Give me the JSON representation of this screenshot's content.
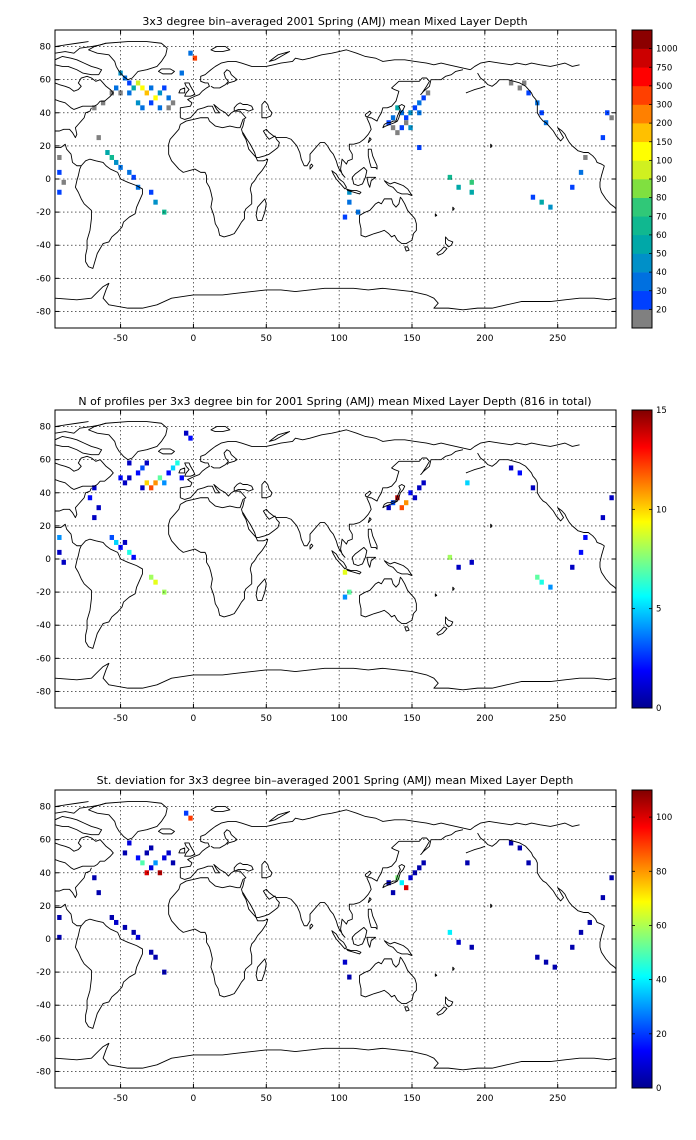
{
  "chart_data": [
    {
      "type": "heatmap",
      "title": "3x3 degree bin–averaged 2001 Spring (AMJ) mean Mixed Layer Depth",
      "xlim": [
        -95,
        290
      ],
      "ylim": [
        -90,
        90
      ],
      "xticks": [
        -50,
        0,
        50,
        100,
        150,
        200,
        250
      ],
      "yticks": [
        80,
        60,
        40,
        20,
        0,
        -20,
        -40,
        -60,
        -80
      ],
      "grid": true,
      "colorbar": {
        "kind": "categorical",
        "labels": [
          "20",
          "30",
          "40",
          "50",
          "60",
          "70",
          "80",
          "90",
          "100",
          "150",
          "200",
          "300",
          "500",
          "750",
          "1000"
        ],
        "colors": [
          "#808080",
          "#0040ff",
          "#0070e0",
          "#0090c8",
          "#00a8a8",
          "#10b890",
          "#30c878",
          "#80e040",
          "#d0f020",
          "#ffff00",
          "#ffc000",
          "#ff8000",
          "#ff4000",
          "#ff0000",
          "#cc0000",
          "#8b0000"
        ]
      },
      "cells": [
        {
          "lon": -50,
          "lat": 64,
          "v": 3
        },
        {
          "lon": -47,
          "lat": 61,
          "v": 2
        },
        {
          "lon": -44,
          "lat": 58,
          "v": 1
        },
        {
          "lon": -53,
          "lat": 55,
          "v": 2
        },
        {
          "lon": -56,
          "lat": 52,
          "v": 0
        },
        {
          "lon": -50,
          "lat": 52,
          "v": 0
        },
        {
          "lon": -44,
          "lat": 52,
          "v": 2
        },
        {
          "lon": -41,
          "lat": 55,
          "v": 4
        },
        {
          "lon": -38,
          "lat": 58,
          "v": 8
        },
        {
          "lon": -35,
          "lat": 55,
          "v": 9
        },
        {
          "lon": -32,
          "lat": 52,
          "v": 10
        },
        {
          "lon": -29,
          "lat": 55,
          "v": 2
        },
        {
          "lon": -26,
          "lat": 49,
          "v": 9
        },
        {
          "lon": -23,
          "lat": 52,
          "v": 3
        },
        {
          "lon": -20,
          "lat": 55,
          "v": 1
        },
        {
          "lon": -17,
          "lat": 49,
          "v": 2
        },
        {
          "lon": -14,
          "lat": 46,
          "v": 0
        },
        {
          "lon": -38,
          "lat": 46,
          "v": 3
        },
        {
          "lon": -35,
          "lat": 43,
          "v": 2
        },
        {
          "lon": -29,
          "lat": 46,
          "v": 1
        },
        {
          "lon": -23,
          "lat": 43,
          "v": 2
        },
        {
          "lon": -17,
          "lat": 43,
          "v": 0
        },
        {
          "lon": -8,
          "lat": 64,
          "v": 2
        },
        {
          "lon": -2,
          "lat": 76,
          "v": 2
        },
        {
          "lon": 1,
          "lat": 73,
          "v": 12
        },
        {
          "lon": -62,
          "lat": 46,
          "v": 0
        },
        {
          "lon": -68,
          "lat": 43,
          "v": 0
        },
        {
          "lon": -65,
          "lat": 25,
          "v": 0
        },
        {
          "lon": -59,
          "lat": 16,
          "v": 4
        },
        {
          "lon": -56,
          "lat": 13,
          "v": 5
        },
        {
          "lon": -53,
          "lat": 10,
          "v": 3
        },
        {
          "lon": -50,
          "lat": 7,
          "v": 2
        },
        {
          "lon": -44,
          "lat": 4,
          "v": 2
        },
        {
          "lon": -41,
          "lat": 1,
          "v": 1
        },
        {
          "lon": -38,
          "lat": -5,
          "v": 2
        },
        {
          "lon": -29,
          "lat": -8,
          "v": 1
        },
        {
          "lon": -26,
          "lat": -14,
          "v": 3
        },
        {
          "lon": -20,
          "lat": -20,
          "v": 5
        },
        {
          "lon": -92,
          "lat": 13,
          "v": 0
        },
        {
          "lon": -92,
          "lat": 4,
          "v": 1
        },
        {
          "lon": -89,
          "lat": -2,
          "v": 0
        },
        {
          "lon": -92,
          "lat": -8,
          "v": 1
        },
        {
          "lon": 140,
          "lat": 43,
          "v": 4
        },
        {
          "lon": 143,
          "lat": 40,
          "v": 2
        },
        {
          "lon": 146,
          "lat": 37,
          "v": 1
        },
        {
          "lon": 149,
          "lat": 40,
          "v": 3
        },
        {
          "lon": 152,
          "lat": 43,
          "v": 1
        },
        {
          "lon": 155,
          "lat": 46,
          "v": 2
        },
        {
          "lon": 158,
          "lat": 49,
          "v": 1
        },
        {
          "lon": 137,
          "lat": 37,
          "v": 2
        },
        {
          "lon": 134,
          "lat": 34,
          "v": 1
        },
        {
          "lon": 137,
          "lat": 31,
          "v": 0
        },
        {
          "lon": 140,
          "lat": 28,
          "v": 0
        },
        {
          "lon": 143,
          "lat": 31,
          "v": 1
        },
        {
          "lon": 146,
          "lat": 34,
          "v": 0
        },
        {
          "lon": 149,
          "lat": 31,
          "v": 3
        },
        {
          "lon": 155,
          "lat": 40,
          "v": 2
        },
        {
          "lon": 161,
          "lat": 52,
          "v": 0
        },
        {
          "lon": 155,
          "lat": 19,
          "v": 1
        },
        {
          "lon": 176,
          "lat": 1,
          "v": 5
        },
        {
          "lon": 182,
          "lat": -5,
          "v": 4
        },
        {
          "lon": 191,
          "lat": -2,
          "v": 6
        },
        {
          "lon": 191,
          "lat": -8,
          "v": 4
        },
        {
          "lon": 107,
          "lat": -8,
          "v": 3
        },
        {
          "lon": 107,
          "lat": -14,
          "v": 2
        },
        {
          "lon": 104,
          "lat": -23,
          "v": 1
        },
        {
          "lon": 113,
          "lat": -20,
          "v": 2
        },
        {
          "lon": 218,
          "lat": 58,
          "v": 0
        },
        {
          "lon": 224,
          "lat": 55,
          "v": 0
        },
        {
          "lon": 227,
          "lat": 58,
          "v": 0
        },
        {
          "lon": 230,
          "lat": 52,
          "v": 1
        },
        {
          "lon": 236,
          "lat": 46,
          "v": 2
        },
        {
          "lon": 239,
          "lat": 40,
          "v": 1
        },
        {
          "lon": 242,
          "lat": 34,
          "v": 2
        },
        {
          "lon": 233,
          "lat": -11,
          "v": 1
        },
        {
          "lon": 239,
          "lat": -14,
          "v": 4
        },
        {
          "lon": 245,
          "lat": -17,
          "v": 3
        },
        {
          "lon": 260,
          "lat": -5,
          "v": 1
        },
        {
          "lon": 266,
          "lat": 4,
          "v": 2
        },
        {
          "lon": 269,
          "lat": 13,
          "v": 0
        },
        {
          "lon": 281,
          "lat": 25,
          "v": 1
        },
        {
          "lon": 287,
          "lat": 37,
          "v": 0
        },
        {
          "lon": 284,
          "lat": 40,
          "v": 1
        }
      ]
    },
    {
      "type": "heatmap",
      "title": "N of profiles per 3x3 degree bin for 2001 Spring (AMJ) mean Mixed Layer Depth  (816 in total)",
      "xlim": [
        -95,
        290
      ],
      "ylim": [
        -90,
        90
      ],
      "xticks": [
        -50,
        0,
        50,
        100,
        150,
        200,
        250
      ],
      "yticks": [
        80,
        60,
        40,
        20,
        0,
        -20,
        -40,
        -60,
        -80
      ],
      "grid": true,
      "colorbar": {
        "kind": "continuous",
        "min": 0,
        "max": 15,
        "ticks": [
          0,
          5,
          10,
          15
        ]
      },
      "cells": [
        {
          "lon": -50,
          "lat": 49,
          "v": 2
        },
        {
          "lon": -47,
          "lat": 46,
          "v": 1
        },
        {
          "lon": -44,
          "lat": 49,
          "v": 1
        },
        {
          "lon": -38,
          "lat": 52,
          "v": 2
        },
        {
          "lon": -35,
          "lat": 55,
          "v": 3
        },
        {
          "lon": -32,
          "lat": 46,
          "v": 10
        },
        {
          "lon": -29,
          "lat": 43,
          "v": 12
        },
        {
          "lon": -26,
          "lat": 46,
          "v": 11
        },
        {
          "lon": -23,
          "lat": 49,
          "v": 7
        },
        {
          "lon": -20,
          "lat": 46,
          "v": 4
        },
        {
          "lon": -17,
          "lat": 52,
          "v": 2
        },
        {
          "lon": -14,
          "lat": 55,
          "v": 5
        },
        {
          "lon": -11,
          "lat": 58,
          "v": 6
        },
        {
          "lon": -8,
          "lat": 49,
          "v": 2
        },
        {
          "lon": -5,
          "lat": 76,
          "v": 1
        },
        {
          "lon": -2,
          "lat": 73,
          "v": 2
        },
        {
          "lon": -35,
          "lat": 43,
          "v": 1
        },
        {
          "lon": -44,
          "lat": 58,
          "v": 1
        },
        {
          "lon": -32,
          "lat": 58,
          "v": 1
        },
        {
          "lon": -68,
          "lat": 43,
          "v": 1
        },
        {
          "lon": -71,
          "lat": 37,
          "v": 2
        },
        {
          "lon": -65,
          "lat": 31,
          "v": 1
        },
        {
          "lon": -68,
          "lat": 25,
          "v": 1
        },
        {
          "lon": -56,
          "lat": 13,
          "v": 3
        },
        {
          "lon": -53,
          "lat": 10,
          "v": 5
        },
        {
          "lon": -50,
          "lat": 7,
          "v": 2
        },
        {
          "lon": -47,
          "lat": 10,
          "v": 1
        },
        {
          "lon": -44,
          "lat": 4,
          "v": 6
        },
        {
          "lon": -41,
          "lat": 1,
          "v": 2
        },
        {
          "lon": -29,
          "lat": -11,
          "v": 8
        },
        {
          "lon": -26,
          "lat": -14,
          "v": 9
        },
        {
          "lon": -20,
          "lat": -20,
          "v": 8
        },
        {
          "lon": -92,
          "lat": 13,
          "v": 4
        },
        {
          "lon": -92,
          "lat": 4,
          "v": 1
        },
        {
          "lon": -89,
          "lat": -2,
          "v": 1
        },
        {
          "lon": 137,
          "lat": 34,
          "v": 3
        },
        {
          "lon": 140,
          "lat": 37,
          "v": 14
        },
        {
          "lon": 143,
          "lat": 31,
          "v": 12
        },
        {
          "lon": 146,
          "lat": 34,
          "v": 11
        },
        {
          "lon": 149,
          "lat": 40,
          "v": 2
        },
        {
          "lon": 152,
          "lat": 37,
          "v": 1
        },
        {
          "lon": 155,
          "lat": 43,
          "v": 1
        },
        {
          "lon": 158,
          "lat": 46,
          "v": 1
        },
        {
          "lon": 134,
          "lat": 31,
          "v": 1
        },
        {
          "lon": 188,
          "lat": 46,
          "v": 5
        },
        {
          "lon": 176,
          "lat": 1,
          "v": 8
        },
        {
          "lon": 182,
          "lat": -5,
          "v": 1
        },
        {
          "lon": 191,
          "lat": -2,
          "v": 1
        },
        {
          "lon": 104,
          "lat": -8,
          "v": 9
        },
        {
          "lon": 107,
          "lat": -20,
          "v": 7
        },
        {
          "lon": 104,
          "lat": -23,
          "v": 4
        },
        {
          "lon": 218,
          "lat": 55,
          "v": 1
        },
        {
          "lon": 224,
          "lat": 52,
          "v": 2
        },
        {
          "lon": 233,
          "lat": 43,
          "v": 1
        },
        {
          "lon": 236,
          "lat": -11,
          "v": 7
        },
        {
          "lon": 239,
          "lat": -14,
          "v": 6
        },
        {
          "lon": 245,
          "lat": -17,
          "v": 4
        },
        {
          "lon": 260,
          "lat": -5,
          "v": 1
        },
        {
          "lon": 266,
          "lat": 4,
          "v": 2
        },
        {
          "lon": 269,
          "lat": 13,
          "v": 2
        },
        {
          "lon": 281,
          "lat": 25,
          "v": 1
        },
        {
          "lon": 287,
          "lat": 37,
          "v": 1
        }
      ]
    },
    {
      "type": "heatmap",
      "title": "St. deviation for 3x3 degree bin–averaged 2001 Spring (AMJ) mean Mixed Layer Depth",
      "xlim": [
        -95,
        290
      ],
      "ylim": [
        -90,
        90
      ],
      "xticks": [
        -50,
        0,
        50,
        100,
        150,
        200,
        250
      ],
      "yticks": [
        80,
        60,
        40,
        20,
        0,
        -20,
        -40,
        -60,
        -80
      ],
      "grid": true,
      "colorbar": {
        "kind": "continuous",
        "min": 0,
        "max": 110,
        "ticks": [
          0,
          20,
          40,
          60,
          80,
          100
        ]
      },
      "cells": [
        {
          "lon": -5,
          "lat": 76,
          "v": 20
        },
        {
          "lon": -2,
          "lat": 73,
          "v": 90
        },
        {
          "lon": -47,
          "lat": 52,
          "v": 5
        },
        {
          "lon": -44,
          "lat": 58,
          "v": 10
        },
        {
          "lon": -38,
          "lat": 49,
          "v": 15
        },
        {
          "lon": -35,
          "lat": 46,
          "v": 50
        },
        {
          "lon": -32,
          "lat": 40,
          "v": 100
        },
        {
          "lon": -29,
          "lat": 43,
          "v": 10
        },
        {
          "lon": -26,
          "lat": 46,
          "v": 30
        },
        {
          "lon": -23,
          "lat": 40,
          "v": 105
        },
        {
          "lon": -20,
          "lat": 49,
          "v": 10
        },
        {
          "lon": -17,
          "lat": 52,
          "v": 8
        },
        {
          "lon": -14,
          "lat": 46,
          "v": 5
        },
        {
          "lon": -32,
          "lat": 52,
          "v": 5
        },
        {
          "lon": -29,
          "lat": 55,
          "v": 5
        },
        {
          "lon": -68,
          "lat": 37,
          "v": 5
        },
        {
          "lon": -65,
          "lat": 28,
          "v": 5
        },
        {
          "lon": -56,
          "lat": 13,
          "v": 5
        },
        {
          "lon": -53,
          "lat": 10,
          "v": 8
        },
        {
          "lon": -47,
          "lat": 7,
          "v": 5
        },
        {
          "lon": -41,
          "lat": 4,
          "v": 5
        },
        {
          "lon": -38,
          "lat": 1,
          "v": 10
        },
        {
          "lon": -29,
          "lat": -8,
          "v": 5
        },
        {
          "lon": -26,
          "lat": -11,
          "v": 5
        },
        {
          "lon": -20,
          "lat": -20,
          "v": 5
        },
        {
          "lon": -92,
          "lat": 13,
          "v": 5
        },
        {
          "lon": -92,
          "lat": 1,
          "v": 5
        },
        {
          "lon": 140,
          "lat": 37,
          "v": 55
        },
        {
          "lon": 143,
          "lat": 34,
          "v": 40
        },
        {
          "lon": 146,
          "lat": 31,
          "v": 100
        },
        {
          "lon": 149,
          "lat": 37,
          "v": 10
        },
        {
          "lon": 152,
          "lat": 40,
          "v": 5
        },
        {
          "lon": 155,
          "lat": 43,
          "v": 5
        },
        {
          "lon": 158,
          "lat": 46,
          "v": 5
        },
        {
          "lon": 137,
          "lat": 28,
          "v": 5
        },
        {
          "lon": 134,
          "lat": 34,
          "v": 5
        },
        {
          "lon": 188,
          "lat": 46,
          "v": 5
        },
        {
          "lon": 176,
          "lat": 4,
          "v": 40
        },
        {
          "lon": 182,
          "lat": -2,
          "v": 8
        },
        {
          "lon": 191,
          "lat": -5,
          "v": 5
        },
        {
          "lon": 104,
          "lat": -14,
          "v": 8
        },
        {
          "lon": 107,
          "lat": -23,
          "v": 5
        },
        {
          "lon": 218,
          "lat": 58,
          "v": 5
        },
        {
          "lon": 224,
          "lat": 55,
          "v": 5
        },
        {
          "lon": 230,
          "lat": 46,
          "v": 5
        },
        {
          "lon": 236,
          "lat": -11,
          "v": 5
        },
        {
          "lon": 242,
          "lat": -14,
          "v": 5
        },
        {
          "lon": 248,
          "lat": -17,
          "v": 5
        },
        {
          "lon": 260,
          "lat": -5,
          "v": 5
        },
        {
          "lon": 266,
          "lat": 4,
          "v": 5
        },
        {
          "lon": 272,
          "lat": 10,
          "v": 5
        },
        {
          "lon": 281,
          "lat": 25,
          "v": 5
        },
        {
          "lon": 287,
          "lat": 37,
          "v": 5
        }
      ]
    }
  ]
}
